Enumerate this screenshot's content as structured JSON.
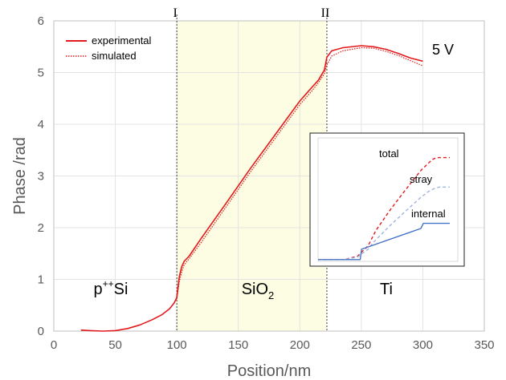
{
  "chart_data": {
    "type": "line",
    "xlabel": "Position/nm",
    "ylabel": "Phase /rad",
    "xlim": [
      0,
      350
    ],
    "ylim": [
      0,
      6
    ],
    "x_ticks": [
      "0",
      "50",
      "100",
      "150",
      "200",
      "250",
      "300",
      "350"
    ],
    "y_ticks": [
      "0",
      "1",
      "2",
      "3",
      "4",
      "5",
      "6"
    ],
    "grid": true,
    "legend_position": "top-left",
    "highlight_region": {
      "from": 100,
      "to": 222,
      "color": "#fdfde3"
    },
    "boundaries": [
      {
        "label": "I",
        "x": 100
      },
      {
        "label": "II",
        "x": 222
      }
    ],
    "regions": [
      {
        "label": "p++Si",
        "base": "p",
        "sup": "++",
        "main": "Si",
        "sub": ""
      },
      {
        "label": "SiO2",
        "base": "",
        "sup": "",
        "main": "SiO",
        "sub": "2"
      },
      {
        "label": "Ti",
        "base": "",
        "sup": "",
        "main": "Ti",
        "sub": ""
      }
    ],
    "voltage_label": "5 V",
    "series": [
      {
        "name": "experimental",
        "style": "solid",
        "color": "#e31a1c",
        "x": [
          22,
          30,
          40,
          50,
          60,
          70,
          80,
          88,
          94,
          98,
          100,
          102,
          104,
          106,
          110,
          120,
          140,
          160,
          180,
          200,
          210,
          215,
          220,
          222,
          226,
          235,
          250,
          260,
          270,
          280,
          290,
          300
        ],
        "y": [
          0.02,
          0.01,
          0.0,
          0.01,
          0.05,
          0.12,
          0.22,
          0.32,
          0.43,
          0.55,
          0.65,
          1.05,
          1.25,
          1.35,
          1.45,
          1.8,
          2.47,
          3.15,
          3.8,
          4.45,
          4.72,
          4.85,
          5.05,
          5.3,
          5.42,
          5.48,
          5.52,
          5.5,
          5.45,
          5.37,
          5.28,
          5.22
        ]
      },
      {
        "name": "simulated",
        "style": "dotted",
        "color": "#e31a1c",
        "x": [
          100,
          102,
          104,
          106,
          110,
          120,
          140,
          160,
          180,
          200,
          210,
          215,
          220,
          222,
          226,
          235,
          250,
          260,
          270,
          280,
          290,
          300
        ],
        "y": [
          0.62,
          0.95,
          1.15,
          1.28,
          1.4,
          1.72,
          2.4,
          3.08,
          3.73,
          4.38,
          4.65,
          4.8,
          4.98,
          5.15,
          5.32,
          5.42,
          5.48,
          5.47,
          5.41,
          5.33,
          5.23,
          5.13
        ]
      }
    ],
    "inset": {
      "type": "line",
      "series": [
        {
          "name": "total",
          "style": "dashed",
          "color": "#e31a1c",
          "x": [
            0,
            0.2,
            0.3,
            0.38,
            0.42,
            0.44,
            0.55,
            0.65,
            0.78,
            0.84,
            0.87,
            0.9,
            1.0
          ],
          "y": [
            0.02,
            0.02,
            0.06,
            0.18,
            0.3,
            0.36,
            0.6,
            0.8,
            1.05,
            1.14,
            1.18,
            1.2,
            1.2
          ]
        },
        {
          "name": "stray",
          "style": "dashed",
          "color": "#9eb5e2",
          "x": [
            0,
            0.2,
            0.3,
            0.38,
            0.42,
            0.55,
            0.65,
            0.78,
            0.84,
            0.88,
            0.92,
            1.0
          ],
          "y": [
            0.02,
            0.02,
            0.05,
            0.14,
            0.22,
            0.42,
            0.56,
            0.74,
            0.81,
            0.84,
            0.86,
            0.86
          ]
        },
        {
          "name": "internal",
          "style": "solid",
          "color": "#4472c4",
          "x": [
            0,
            0.32,
            0.33,
            0.78,
            0.8,
            1.0
          ],
          "y": [
            0.02,
            0.02,
            0.14,
            0.38,
            0.44,
            0.44
          ]
        }
      ]
    }
  }
}
